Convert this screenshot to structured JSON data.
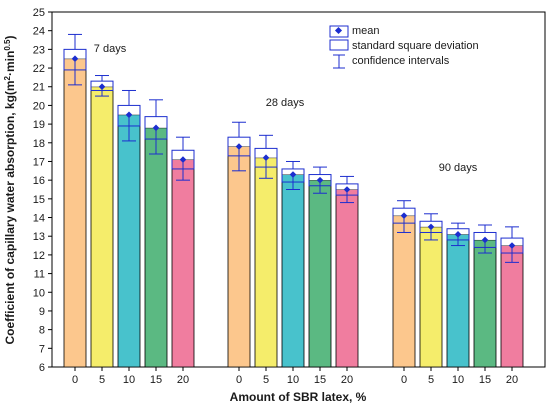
{
  "chart_data": {
    "type": "bar",
    "ylabel_main": "Coefficient of capillary water absorption, kg(m",
    "ylabel_sup1": "2",
    "ylabel_mid": "·min",
    "ylabel_sup2": "0.5",
    "ylabel_end": ")",
    "xlabel": "Amount of SBR latex, %",
    "ylim": [
      6,
      25
    ],
    "yticks": [
      6,
      7,
      8,
      9,
      10,
      11,
      12,
      13,
      14,
      15,
      16,
      17,
      18,
      19,
      20,
      21,
      22,
      23,
      24,
      25
    ],
    "categories": [
      "0",
      "5",
      "10",
      "15",
      "20"
    ],
    "category_colors": [
      "#fcc78d",
      "#f5ed6b",
      "#48c2cc",
      "#5bb982",
      "#f07d9f"
    ],
    "groups": [
      {
        "label": "7 days",
        "mean": [
          22.5,
          21.0,
          19.5,
          18.8,
          17.1
        ],
        "box_low": [
          21.9,
          20.8,
          18.9,
          18.2,
          16.6
        ],
        "box_high": [
          23.0,
          21.3,
          20.0,
          19.4,
          17.6
        ],
        "ci_low": [
          21.1,
          20.5,
          18.1,
          17.4,
          16.0
        ],
        "ci_high": [
          23.8,
          21.6,
          20.8,
          20.3,
          18.3
        ]
      },
      {
        "label": "28 days",
        "mean": [
          17.8,
          17.2,
          16.3,
          16.0,
          15.5
        ],
        "box_low": [
          17.3,
          16.7,
          15.9,
          15.7,
          15.2
        ],
        "box_high": [
          18.3,
          17.7,
          16.6,
          16.3,
          15.8
        ],
        "ci_low": [
          16.5,
          16.1,
          15.5,
          15.3,
          14.8
        ],
        "ci_high": [
          19.1,
          18.4,
          17.0,
          16.7,
          16.2
        ]
      },
      {
        "label": "90 days",
        "mean": [
          14.1,
          13.5,
          13.1,
          12.8,
          12.5
        ],
        "box_low": [
          13.7,
          13.2,
          12.8,
          12.4,
          12.1
        ],
        "box_high": [
          14.5,
          13.8,
          13.4,
          13.2,
          12.9
        ],
        "ci_low": [
          13.2,
          12.8,
          12.5,
          12.1,
          11.6
        ],
        "ci_high": [
          14.9,
          14.2,
          13.7,
          13.6,
          13.5
        ]
      }
    ],
    "legend": {
      "mean": "mean",
      "std": "standard square deviation",
      "ci": "confidence intervals"
    },
    "colors": {
      "accent": "#1c2ecf",
      "box_fill": "#ffffff"
    }
  }
}
